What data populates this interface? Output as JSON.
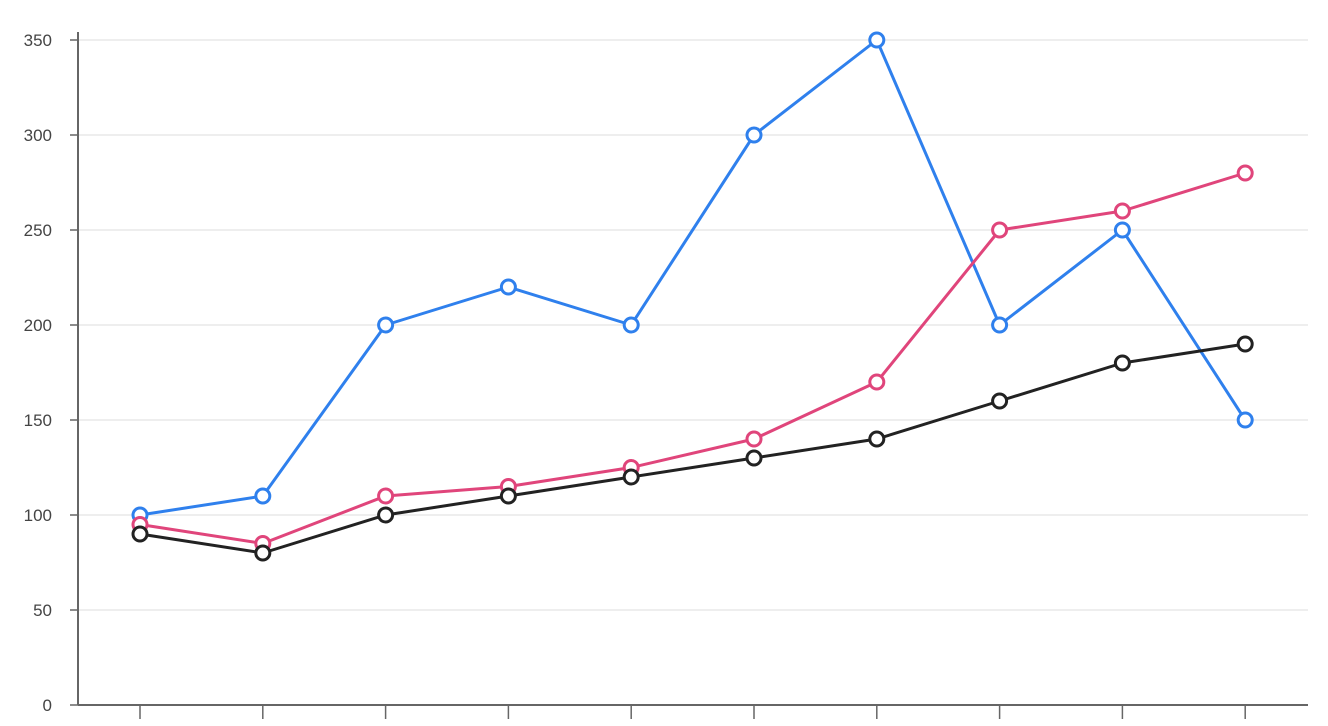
{
  "chart_data": {
    "type": "line",
    "title": "",
    "xlabel": "",
    "ylabel": "",
    "categories": [
      "",
      "",
      "",
      "",
      "",
      "",
      "",
      "",
      "",
      ""
    ],
    "ylim": [
      0,
      350
    ],
    "yticks": [
      0,
      50,
      100,
      150,
      200,
      250,
      300,
      350
    ],
    "grid": true,
    "legend": "none",
    "series": [
      {
        "color": "#2f80ed",
        "values": [
          100,
          110,
          200,
          220,
          200,
          300,
          350,
          200,
          250,
          150
        ]
      },
      {
        "color": "#e0457b",
        "values": [
          95,
          85,
          110,
          115,
          125,
          140,
          170,
          250,
          260,
          280
        ]
      },
      {
        "color": "#222222",
        "values": [
          90,
          80,
          100,
          110,
          120,
          130,
          140,
          160,
          180,
          190
        ]
      }
    ]
  },
  "colors": {
    "grid": "#eeeeee",
    "axis": "#666666",
    "marker_fill": "#ffffff"
  }
}
